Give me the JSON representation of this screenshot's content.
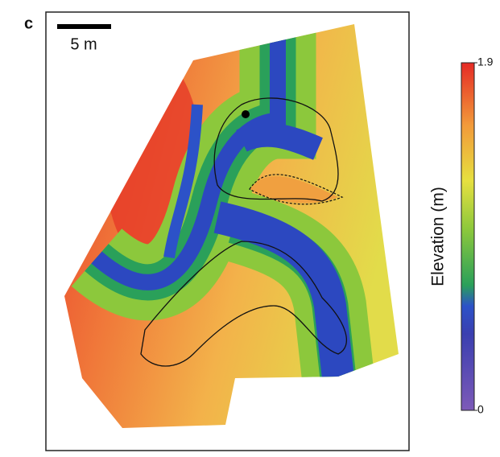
{
  "panel_label": "c",
  "scale_bar": {
    "label": "5 m"
  },
  "colorbar": {
    "label": "Elevation (m)",
    "range": [
      0,
      1.9
    ],
    "ticks": [
      0,
      1.9
    ]
  }
}
